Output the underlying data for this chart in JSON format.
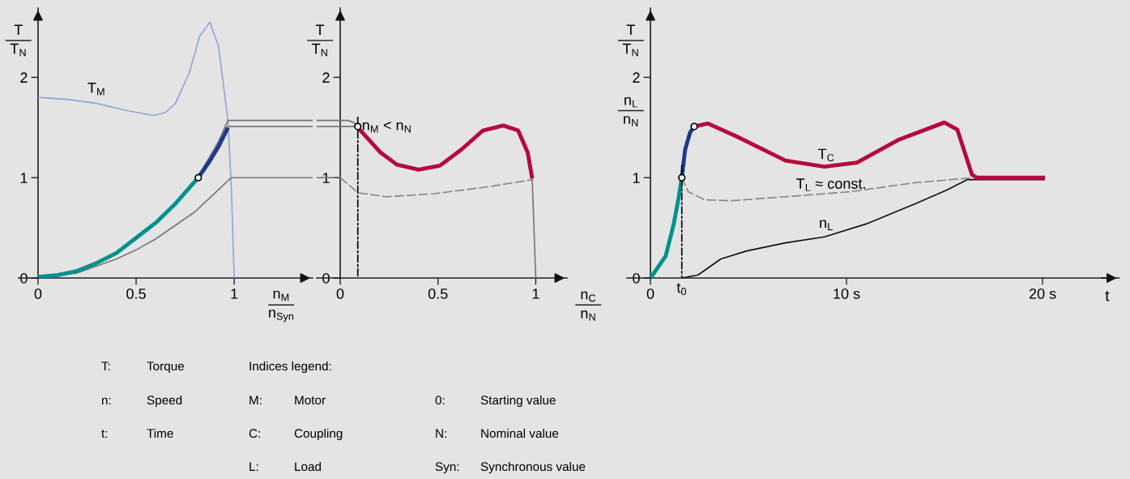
{
  "chart_data": [
    {
      "type": "line",
      "ylabel": "T\nT$_{N}$",
      "xlabel": "n$_{M}$\nn$_{Syn}$",
      "xlim": [
        -0.1,
        1.4
      ],
      "ylim": [
        0,
        2.69
      ],
      "xticks": [
        0,
        0.5,
        1
      ],
      "yticks": [
        0,
        1,
        2
      ],
      "grid": false,
      "series": [
        {
          "color": "#8fa6d6",
          "x": [
            0,
            0.15,
            0.3,
            0.45,
            0.59,
            0.65,
            0.7,
            0.77,
            0.824,
            0.876,
            0.92,
            0.948,
            0.968,
            0.986,
            1.0
          ],
          "values": [
            1.8,
            1.78,
            1.74,
            1.67,
            1.62,
            1.65,
            1.74,
            2.04,
            2.41,
            2.55,
            2.31,
            1.88,
            1.57,
            0.88,
            0
          ]
        },
        {
          "color": "#777777",
          "x": [
            0,
            0.2,
            0.4,
            0.5,
            0.6,
            0.8,
            0.985,
            1.4
          ],
          "values": [
            0,
            0.05,
            0.19,
            0.28,
            0.39,
            0.66,
            1.0,
            1.0
          ]
        },
        {
          "color": "#777777",
          "x": [
            0.817,
            0.87,
            0.92,
            0.968,
            1.4
          ],
          "values": [
            1.02,
            1.19,
            1.36,
            1.57,
            1.57
          ]
        },
        {
          "color": "#777777",
          "x": [
            0.968,
            1.4
          ],
          "values": [
            1.51,
            1.51
          ]
        },
        {
          "color": "#00918c",
          "x": [
            0,
            0.1,
            0.2,
            0.3,
            0.4,
            0.5,
            0.6,
            0.7,
            0.817
          ],
          "values": [
            0.01,
            0.03,
            0.07,
            0.15,
            0.25,
            0.4,
            0.55,
            0.74,
            1.0
          ]
        },
        {
          "color": "#1e3a8a",
          "x": [
            0.817,
            0.87,
            0.92,
            0.968
          ],
          "values": [
            1.0,
            1.15,
            1.31,
            1.5
          ]
        },
        {
          "type": "scatter",
          "marker": "circle",
          "color": "#000000",
          "x": [
            0.817
          ],
          "values": [
            1.0
          ]
        }
      ],
      "annotations": [
        "T$_{M}$"
      ]
    },
    {
      "type": "line",
      "ylabel": "T\nT$_{N}$",
      "xlabel": "n$_{C}$\nn$_{N}$",
      "xlim": [
        -0.12,
        1.16
      ],
      "ylim": [
        0,
        2.69
      ],
      "xticks": [
        0,
        0.5,
        1
      ],
      "yticks": [
        0,
        1,
        2
      ],
      "grid": false,
      "series": [
        {
          "color": "#777777",
          "x": [
            -0.12,
            0.04,
            0.07,
            0.09
          ],
          "values": [
            1.57,
            1.57,
            1.55,
            1.51
          ]
        },
        {
          "color": "#777777",
          "x": [
            -0.12,
            0.09
          ],
          "values": [
            1.51,
            1.51
          ]
        },
        {
          "color": "#777777",
          "x": [
            -0.12,
            -0.03
          ],
          "values": [
            1.0,
            1.0
          ]
        },
        {
          "color": "#000000",
          "line_style": "dashdot",
          "x": [
            0.09,
            0.09
          ],
          "values": [
            1.6,
            0
          ]
        },
        {
          "color": "#888888",
          "line_style": "dashed",
          "x": [
            0,
            0.09,
            0.234,
            0.48,
            0.76,
            0.982
          ],
          "values": [
            1.0,
            0.85,
            0.81,
            0.84,
            0.91,
            0.98
          ]
        },
        {
          "color": "#777777",
          "x": [
            0.982,
            1.0
          ],
          "values": [
            0.99,
            0
          ]
        },
        {
          "color": "#b5093c",
          "x": [
            0.09,
            0.207,
            0.29,
            0.4,
            0.51,
            0.62,
            0.73,
            0.834,
            0.91,
            0.959,
            0.982
          ],
          "values": [
            1.5,
            1.25,
            1.13,
            1.08,
            1.12,
            1.28,
            1.47,
            1.52,
            1.47,
            1.25,
            0.99
          ]
        },
        {
          "type": "scatter",
          "marker": "circle",
          "color": "#000000",
          "x": [
            0.09
          ],
          "values": [
            1.51
          ]
        }
      ],
      "annotations": [
        {
          "text": "n$_{M}$ < n$_{N}$",
          "x": 0.09,
          "y": 1.51
        }
      ]
    },
    {
      "type": "line",
      "ylabel": "T\nT$_{N}$",
      "y2label": "n$_{L}$\nn$_{N}$",
      "xlabel": "t",
      "xlim": [
        -1.2,
        23.9
      ],
      "ylim": [
        0,
        2.69
      ],
      "xticks": [
        0,
        {
          "value": 10,
          "label": "10 s"
        },
        {
          "value": 20,
          "label": "20 s"
        }
      ],
      "yticks": [
        0,
        1,
        2
      ],
      "grid": false,
      "series": [
        {
          "color": "#000000",
          "line_style": "dashdot",
          "x": [
            1.6,
            1.6
          ],
          "values": [
            1.12,
            0
          ]
        },
        {
          "color": "#888888",
          "line_style": "dashed",
          "x": [
            1.6,
            1.93,
            2.76,
            4.08,
            6.89,
            10.2,
            13.5,
            16.48
          ],
          "values": [
            1.0,
            0.86,
            0.78,
            0.77,
            0.81,
            0.86,
            0.95,
            1.0
          ]
        },
        {
          "color": "#111111",
          "x": [
            1.6,
            2.43,
            3.59,
            4.91,
            6.89,
            8.88,
            11.02,
            13.5,
            15.16,
            16.15,
            20.12
          ],
          "values": [
            0,
            0.03,
            0.19,
            0.27,
            0.35,
            0.41,
            0.54,
            0.74,
            0.88,
            0.98,
            0.98
          ]
        },
        {
          "color": "#00918c",
          "x": [
            0,
            0.78,
            1.19,
            1.44,
            1.6
          ],
          "values": [
            0,
            0.22,
            0.54,
            0.8,
            1.0
          ]
        },
        {
          "color": "#1e3a8a",
          "x": [
            1.6,
            1.77,
            2.02,
            2.23
          ],
          "values": [
            1.0,
            1.28,
            1.45,
            1.51
          ]
        },
        {
          "color": "#b5093c",
          "x": [
            2.23,
            2.93,
            4.41,
            6.89,
            8.88,
            10.53,
            12.68,
            14.99,
            15.65,
            16.4,
            16.64,
            20.12
          ],
          "values": [
            1.51,
            1.54,
            1.41,
            1.17,
            1.11,
            1.15,
            1.38,
            1.55,
            1.48,
            1.03,
            1.0,
            1.0
          ]
        },
        {
          "type": "scatter",
          "marker": "circle",
          "color": "#000000",
          "x": [
            1.6,
            2.23
          ],
          "values": [
            1.0,
            1.51
          ]
        }
      ],
      "annotations": [
        {
          "text": "t$_{0}$",
          "x": 1.6,
          "y": 0
        },
        "T$_{C}$",
        "T$_{L}$ ≈ const.",
        "n$_{L}$"
      ]
    },
    {
      "type": "other",
      "annotations": [
        "T:\tTorque",
        "n:\tSpeed",
        "t:\tTime",
        "Indices legend:",
        "M:\tMotor",
        "C:\tCoupling",
        "L:\tLoad",
        "0:\tStarting value",
        "N:\tNominal value",
        "Syn:\tSynchronous value"
      ]
    }
  ]
}
